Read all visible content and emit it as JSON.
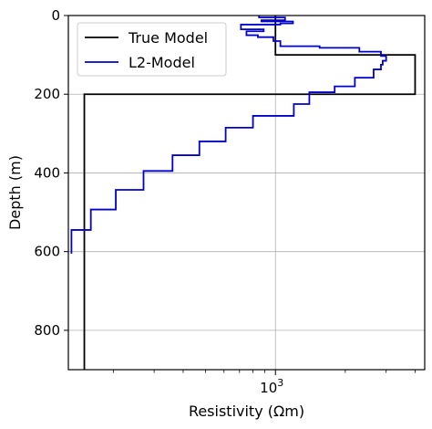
{
  "chart_data": {
    "type": "line",
    "xlabel": "Resistivity (Ωm)",
    "ylabel": "Depth (m)",
    "xscale": "log",
    "xlim": [
      128,
      4400
    ],
    "ylim": [
      900,
      0
    ],
    "x_major_ticks": [
      {
        "value": 1000,
        "label": "10",
        "exponent": "3"
      }
    ],
    "y_ticks": [
      0,
      200,
      400,
      600,
      800
    ],
    "grid": true,
    "legend": {
      "placement": "top-left"
    },
    "colors": {
      "true_model": "#000000",
      "l2_model": "#0000cc"
    },
    "series": [
      {
        "name": "True Model",
        "style": "step",
        "points": [
          [
            1000,
            0
          ],
          [
            1000,
            100
          ],
          [
            4000,
            100
          ],
          [
            4000,
            200
          ],
          [
            150,
            200
          ],
          [
            150,
            900
          ]
        ]
      },
      {
        "name": "L2-Model",
        "style": "step",
        "points": [
          [
            850,
            0
          ],
          [
            850,
            5
          ],
          [
            1100,
            5
          ],
          [
            1100,
            12
          ],
          [
            870,
            12
          ],
          [
            870,
            15
          ],
          [
            1190,
            15
          ],
          [
            1190,
            20
          ],
          [
            1050,
            20
          ],
          [
            1050,
            23
          ],
          [
            710,
            23
          ],
          [
            710,
            35
          ],
          [
            890,
            35
          ],
          [
            890,
            40
          ],
          [
            750,
            40
          ],
          [
            750,
            50
          ],
          [
            840,
            50
          ],
          [
            840,
            55
          ],
          [
            980,
            55
          ],
          [
            980,
            65
          ],
          [
            1050,
            65
          ],
          [
            1050,
            78
          ],
          [
            1550,
            78
          ],
          [
            1550,
            82
          ],
          [
            2300,
            82
          ],
          [
            2300,
            92
          ],
          [
            2850,
            92
          ],
          [
            2850,
            103
          ],
          [
            3000,
            103
          ],
          [
            3000,
            115
          ],
          [
            2900,
            115
          ],
          [
            2900,
            125
          ],
          [
            2850,
            125
          ],
          [
            2850,
            137
          ],
          [
            2650,
            137
          ],
          [
            2650,
            158
          ],
          [
            2200,
            158
          ],
          [
            2200,
            180
          ],
          [
            1800,
            180
          ],
          [
            1800,
            195
          ],
          [
            1400,
            195
          ],
          [
            1400,
            225
          ],
          [
            1200,
            225
          ],
          [
            1200,
            255
          ],
          [
            800,
            255
          ],
          [
            800,
            285
          ],
          [
            610,
            285
          ],
          [
            610,
            320
          ],
          [
            470,
            320
          ],
          [
            470,
            355
          ],
          [
            360,
            355
          ],
          [
            360,
            395
          ],
          [
            270,
            395
          ],
          [
            270,
            443
          ],
          [
            205,
            443
          ],
          [
            205,
            493
          ],
          [
            160,
            493
          ],
          [
            160,
            545
          ],
          [
            132,
            545
          ],
          [
            132,
            605
          ]
        ]
      }
    ]
  }
}
